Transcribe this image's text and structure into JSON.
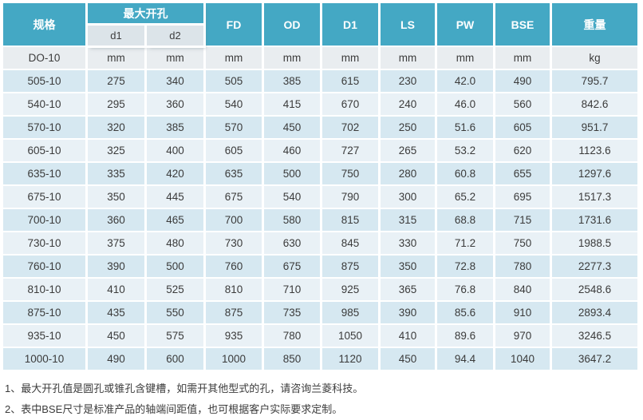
{
  "table": {
    "header": {
      "spec_label": "规格",
      "max_opening_label": "最大开孔",
      "d1_label": "d1",
      "d2_label": "d2",
      "fd_label": "FD",
      "od_label": "OD",
      "d1_dim_label": "D1",
      "ls_label": "LS",
      "pw_label": "PW",
      "bse_label": "BSE",
      "weight_label": "重量"
    },
    "unit_row": [
      "DO-10",
      "mm",
      "mm",
      "mm",
      "mm",
      "mm",
      "mm",
      "mm",
      "mm",
      "kg"
    ],
    "rows": [
      [
        "505-10",
        "275",
        "340",
        "505",
        "385",
        "615",
        "230",
        "42.0",
        "490",
        "795.7"
      ],
      [
        "540-10",
        "295",
        "360",
        "540",
        "415",
        "670",
        "240",
        "46.0",
        "560",
        "842.6"
      ],
      [
        "570-10",
        "320",
        "385",
        "570",
        "450",
        "702",
        "250",
        "51.6",
        "605",
        "951.7"
      ],
      [
        "605-10",
        "325",
        "400",
        "605",
        "460",
        "727",
        "265",
        "53.2",
        "620",
        "1123.6"
      ],
      [
        "635-10",
        "335",
        "420",
        "635",
        "500",
        "750",
        "280",
        "60.8",
        "655",
        "1297.6"
      ],
      [
        "675-10",
        "350",
        "445",
        "675",
        "540",
        "790",
        "300",
        "65.2",
        "695",
        "1517.3"
      ],
      [
        "700-10",
        "360",
        "465",
        "700",
        "580",
        "815",
        "315",
        "68.8",
        "715",
        "1731.6"
      ],
      [
        "730-10",
        "375",
        "480",
        "730",
        "630",
        "845",
        "330",
        "71.2",
        "750",
        "1988.5"
      ],
      [
        "760-10",
        "390",
        "500",
        "760",
        "675",
        "875",
        "350",
        "72.8",
        "780",
        "2277.3"
      ],
      [
        "810-10",
        "410",
        "525",
        "810",
        "710",
        "925",
        "365",
        "76.8",
        "840",
        "2548.6"
      ],
      [
        "875-10",
        "435",
        "550",
        "875",
        "735",
        "985",
        "390",
        "85.6",
        "910",
        "2893.4"
      ],
      [
        "935-10",
        "450",
        "575",
        "935",
        "780",
        "1050",
        "410",
        "89.6",
        "970",
        "3246.5"
      ],
      [
        "1000-10",
        "490",
        "600",
        "1000",
        "850",
        "1120",
        "450",
        "94.4",
        "1040",
        "3647.2"
      ]
    ]
  },
  "notes": [
    "1、最大开孔值是圆孔或锥孔含键槽，如需开其他型式的孔，请咨询兰菱科技。",
    "2、表中BSE尺寸是标准产品的轴端间距值，也可根据客户实际要求定制。"
  ],
  "colors": {
    "header_teal": "#44A8C4",
    "subheader_bg": "#DCE4E9",
    "unit_row_bg": "#E9EDF0",
    "row_blue": "#D6E8F1",
    "row_light": "#E9F1F6",
    "body_text": "#3B3B3B"
  }
}
